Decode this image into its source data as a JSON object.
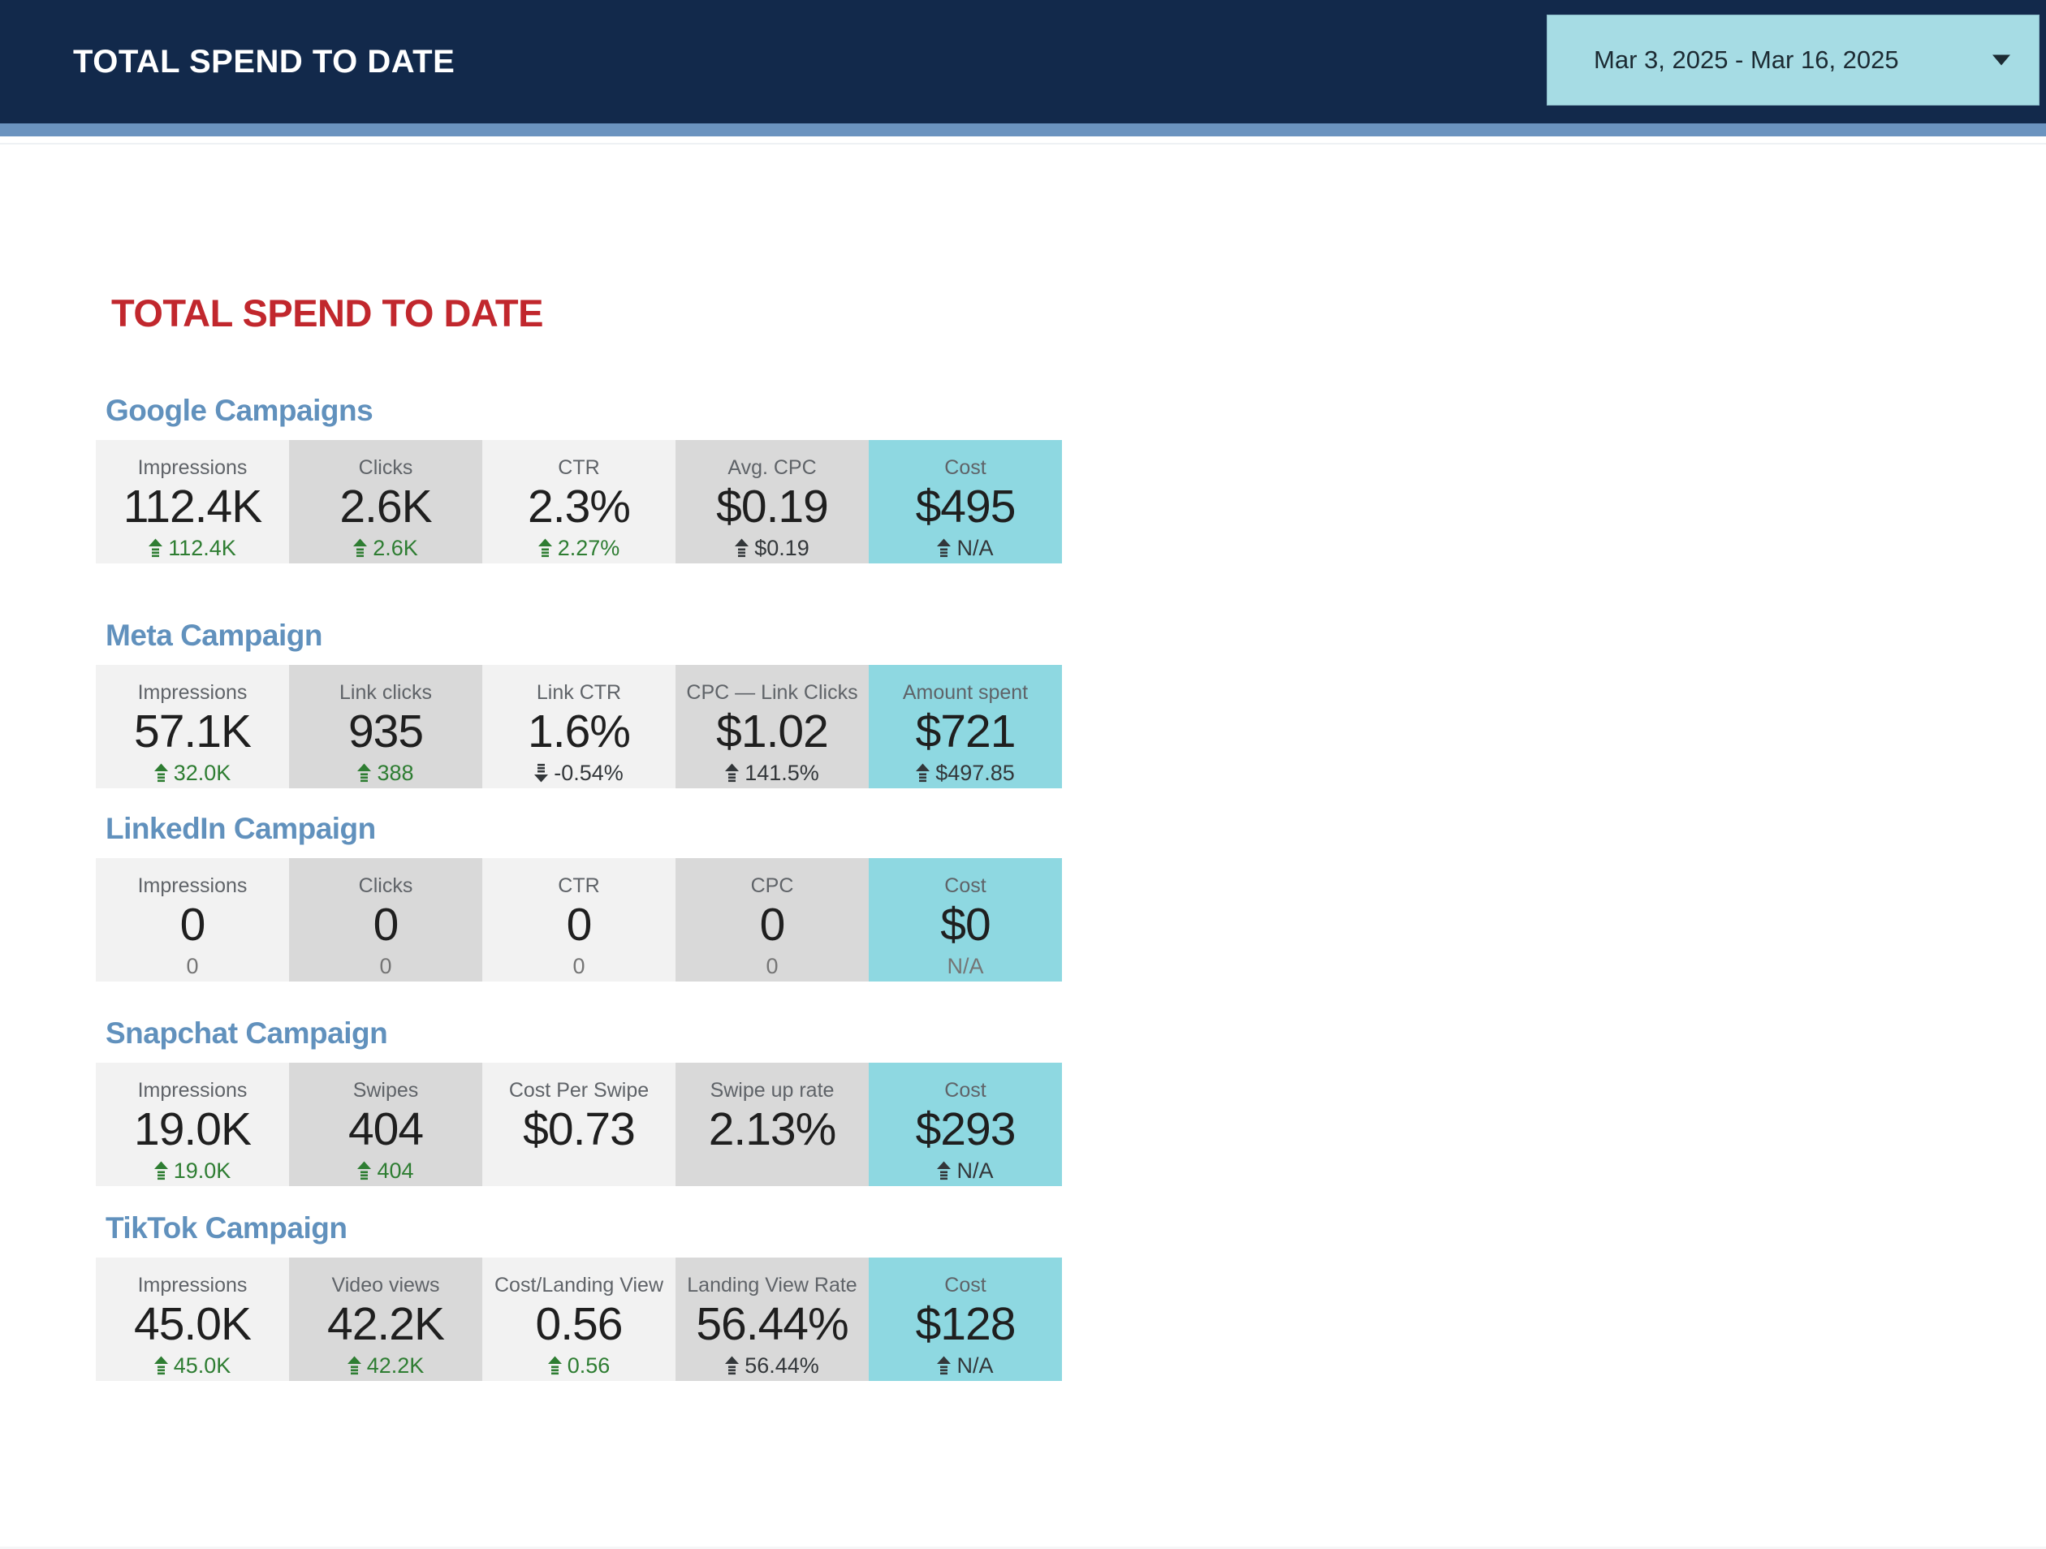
{
  "header": {
    "title": "TOTAL SPEND TO DATE",
    "date_range": "Mar 3, 2025 - Mar 16, 2025"
  },
  "page": {
    "title": "TOTAL SPEND TO DATE"
  },
  "icons": {
    "date_caret": "caret-down",
    "delta_up": "arrow-up",
    "delta_down": "arrow-down"
  },
  "colors": {
    "header_bg": "#12294b",
    "subbar": "#6b93bf",
    "date_box": "#a6dce4",
    "title_red": "#c1272d",
    "heading_blue": "#6191bd",
    "tile_light": "#f2f2f2",
    "tile_mid": "#d9d9d9",
    "tile_accent": "#8ed8e1",
    "delta_green": "#2e7d32",
    "delta_dark": "#33373a",
    "delta_muted": "#757575",
    "label_gray": "#5f6368",
    "value_dark": "#1f1f1f"
  },
  "sections": [
    {
      "heading": "Google Campaigns",
      "tiles": [
        {
          "label": "Impressions",
          "value": "112.4K",
          "delta": "112.4K",
          "dir": "up",
          "tone": "green",
          "variant": "light"
        },
        {
          "label": "Clicks",
          "value": "2.6K",
          "delta": "2.6K",
          "dir": "up",
          "tone": "green",
          "variant": "mid"
        },
        {
          "label": "CTR",
          "value": "2.3%",
          "delta": "2.27%",
          "dir": "up",
          "tone": "green",
          "variant": "light"
        },
        {
          "label": "Avg. CPC",
          "value": "$0.19",
          "delta": "$0.19",
          "dir": "up",
          "tone": "dark",
          "variant": "mid"
        },
        {
          "label": "Cost",
          "value": "$495",
          "delta": "N/A",
          "dir": "up",
          "tone": "dark",
          "variant": "accent"
        }
      ]
    },
    {
      "heading": "Meta Campaign",
      "tiles": [
        {
          "label": "Impressions",
          "value": "57.1K",
          "delta": "32.0K",
          "dir": "up",
          "tone": "green",
          "variant": "light"
        },
        {
          "label": "Link clicks",
          "value": "935",
          "delta": "388",
          "dir": "up",
          "tone": "green",
          "variant": "mid"
        },
        {
          "label": "Link CTR",
          "value": "1.6%",
          "delta": "-0.54%",
          "dir": "down",
          "tone": "dark",
          "variant": "light"
        },
        {
          "label": "CPC — Link Clicks",
          "value": "$1.02",
          "delta": "141.5%",
          "dir": "up",
          "tone": "dark",
          "variant": "mid"
        },
        {
          "label": "Amount spent",
          "value": "$721",
          "delta": "$497.85",
          "dir": "up",
          "tone": "dark",
          "variant": "accent"
        }
      ]
    },
    {
      "heading": "LinkedIn Campaign",
      "tiles": [
        {
          "label": "Impressions",
          "value": "0",
          "delta": "0",
          "dir": "none",
          "tone": "muted",
          "variant": "light"
        },
        {
          "label": "Clicks",
          "value": "0",
          "delta": "0",
          "dir": "none",
          "tone": "muted",
          "variant": "mid"
        },
        {
          "label": "CTR",
          "value": "0",
          "delta": "0",
          "dir": "none",
          "tone": "muted",
          "variant": "light"
        },
        {
          "label": "CPC",
          "value": "0",
          "delta": "0",
          "dir": "none",
          "tone": "muted",
          "variant": "mid"
        },
        {
          "label": "Cost",
          "value": "$0",
          "delta": "N/A",
          "dir": "none",
          "tone": "muted",
          "variant": "accent"
        }
      ]
    },
    {
      "heading": "Snapchat Campaign",
      "tiles": [
        {
          "label": "Impressions",
          "value": "19.0K",
          "delta": "19.0K",
          "dir": "up",
          "tone": "green",
          "variant": "light"
        },
        {
          "label": "Swipes",
          "value": "404",
          "delta": "404",
          "dir": "up",
          "tone": "green",
          "variant": "mid"
        },
        {
          "label": "Cost Per Swipe",
          "value": "$0.73",
          "delta": null,
          "dir": "none",
          "tone": "muted",
          "variant": "light"
        },
        {
          "label": "Swipe up rate",
          "value": "2.13%",
          "delta": null,
          "dir": "none",
          "tone": "muted",
          "variant": "mid"
        },
        {
          "label": "Cost",
          "value": "$293",
          "delta": "N/A",
          "dir": "up",
          "tone": "dark",
          "variant": "accent"
        }
      ]
    },
    {
      "heading": "TikTok Campaign",
      "tiles": [
        {
          "label": "Impressions",
          "value": "45.0K",
          "delta": "45.0K",
          "dir": "up",
          "tone": "green",
          "variant": "light"
        },
        {
          "label": "Video views",
          "value": "42.2K",
          "delta": "42.2K",
          "dir": "up",
          "tone": "green",
          "variant": "mid"
        },
        {
          "label": "Cost/Landing View",
          "value": "0.56",
          "delta": "0.56",
          "dir": "up",
          "tone": "green",
          "variant": "light"
        },
        {
          "label": "Landing View Rate",
          "value": "56.44%",
          "delta": "56.44%",
          "dir": "up",
          "tone": "dark",
          "variant": "mid"
        },
        {
          "label": "Cost",
          "value": "$128",
          "delta": "N/A",
          "dir": "up",
          "tone": "dark",
          "variant": "accent"
        }
      ]
    }
  ]
}
